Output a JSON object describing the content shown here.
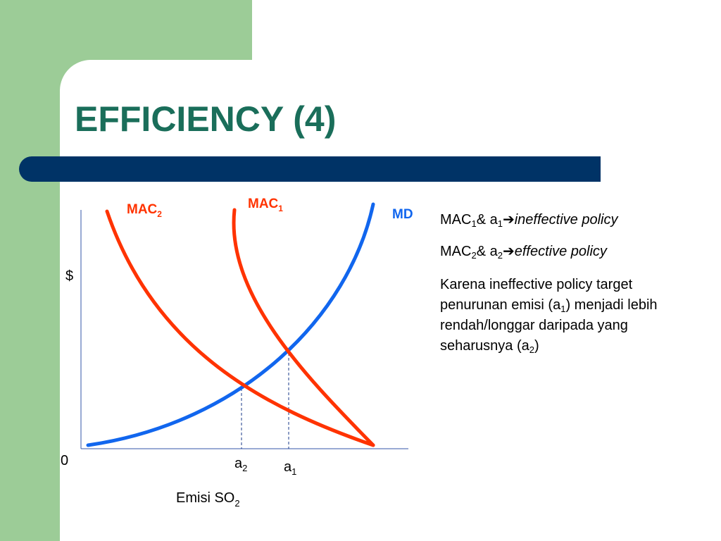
{
  "slide": {
    "title": "EFFICIENCY (4)",
    "colors": {
      "title": "#1a6e5a",
      "bar": "#003366",
      "green": "#9ccc97"
    }
  },
  "chart_data": {
    "type": "line",
    "ylabel": "$",
    "xlabel": "Emisi SO",
    "xlabel_sub": "2",
    "origin_label": "0",
    "series": [
      {
        "name": "MAC",
        "sub": "1",
        "color": "#ff3300"
      },
      {
        "name": "MAC",
        "sub": "2",
        "color": "#ff3300"
      },
      {
        "name": "MD",
        "sub": "",
        "color": "#1166ee"
      }
    ],
    "markers": [
      {
        "label": "a",
        "sub": "2"
      },
      {
        "label": "a",
        "sub": "1"
      }
    ]
  },
  "notes": {
    "line1": {
      "a": "MAC",
      "a_sub": "1",
      "b": "& a",
      "b_sub": "1",
      "arrow": "➔",
      "text": "ineffective policy"
    },
    "line2": {
      "a": "MAC",
      "a_sub": "2",
      "b": "& a",
      "b_sub": "2",
      "arrow": "➔",
      "text": "effective policy"
    },
    "para": {
      "t1": "Karena ineffective policy target penurunan emisi (a",
      "s1": "1",
      "t2": ") menjadi lebih rendah/longgar daripada yang seharusnya (a",
      "s2": "2",
      "t3": ")"
    }
  }
}
